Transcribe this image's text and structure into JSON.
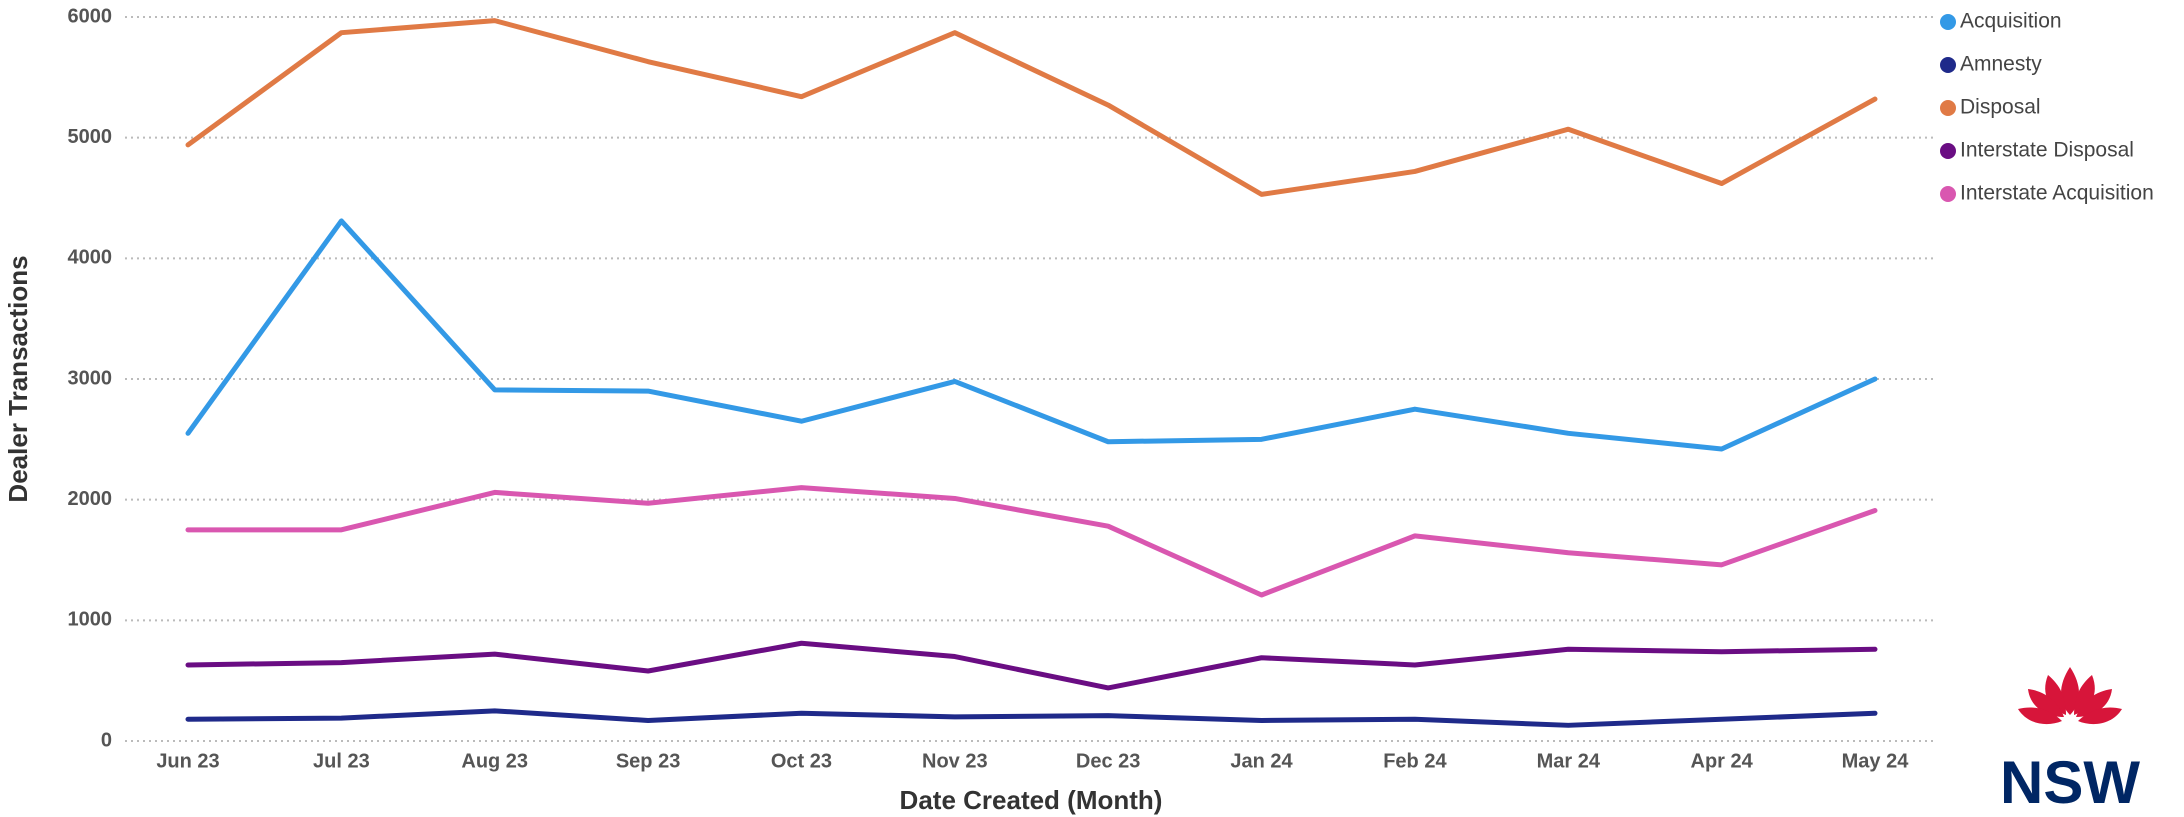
{
  "chart_data": {
    "type": "line",
    "x_label": "Date Created (Month)",
    "y_label": "Dealer Transactions",
    "categories": [
      "Jun 23",
      "Jul 23",
      "Aug 23",
      "Sep 23",
      "Oct 23",
      "Nov 23",
      "Dec 23",
      "Jan 24",
      "Feb 24",
      "Mar 24",
      "Apr 24",
      "May 24"
    ],
    "ylim": [
      0,
      6000
    ],
    "yticks": [
      0,
      1000,
      2000,
      3000,
      4000,
      5000,
      6000
    ],
    "grid": true,
    "legend": "top-right",
    "series": [
      {
        "name": "Acquisition",
        "color": "#3399e6",
        "values": [
          2550,
          4310,
          2910,
          2900,
          2650,
          2980,
          2480,
          2500,
          2750,
          2550,
          2420,
          3000
        ]
      },
      {
        "name": "Amnesty",
        "color": "#1f2a8a",
        "values": [
          180,
          190,
          250,
          170,
          230,
          200,
          210,
          170,
          180,
          130,
          180,
          230
        ]
      },
      {
        "name": "Disposal",
        "color": "#e07a45",
        "values": [
          4940,
          5870,
          5970,
          5630,
          5340,
          5870,
          5270,
          4530,
          4720,
          5070,
          4620,
          5320
        ]
      },
      {
        "name": "Interstate Disposal",
        "color": "#6a0d83",
        "values": [
          630,
          650,
          720,
          580,
          810,
          700,
          440,
          690,
          630,
          760,
          740,
          760
        ]
      },
      {
        "name": "Interstate Acquisition",
        "color": "#d957b0",
        "values": [
          1750,
          1750,
          2060,
          1970,
          2100,
          2010,
          1780,
          1210,
          1700,
          1560,
          1460,
          1910
        ]
      }
    ]
  },
  "logo": "NSW"
}
